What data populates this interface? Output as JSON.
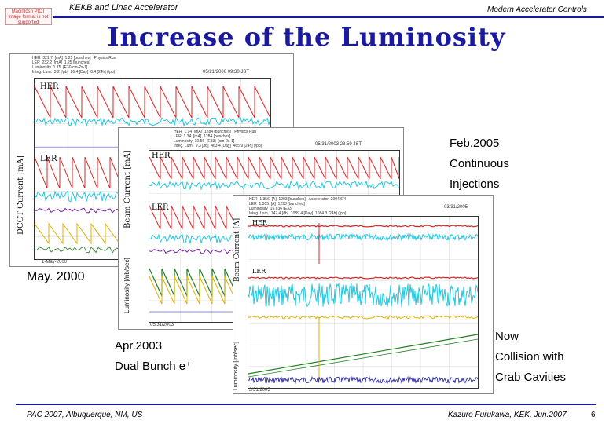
{
  "header": {
    "left": "KEKB and Linac Accelerator",
    "right": "Modern Accelerator Controls",
    "logo": "Macintosh PICT image format is not supported"
  },
  "title": "Increase of the Luminosity",
  "captions": {
    "may2000": "May. 2000",
    "feb2005": [
      "Feb.2005",
      "Continuous",
      "Injections"
    ],
    "apr2003": [
      "Apr.2003",
      "Dual Bunch e⁺"
    ],
    "now": [
      "Now",
      "Collision with",
      "Crab Cavities"
    ]
  },
  "plots": {
    "p2000": {
      "her_label": "HER",
      "ler_label": "LER",
      "ylabel": "DCCT Current [mA]",
      "info": "HER  321.7  [mA]  1.25 [bunches]   Physics Run\nLER  232.2  [mA]  1.25 [bunches]\nLuminosity  1.75  [E30 cm-2s-1]\nInteg. Lum.  3.2 [/pb]  26.4 [Day]  6.4 [24h] (/pb)",
      "date": "05/21/2000 09:30 JST",
      "time_label": "1-May-2000"
    },
    "p2003": {
      "her_label": "HER",
      "ler_label": "LER",
      "ylabel": "Beam Current [mA]",
      "ylabel2": "Luminosity [/nb/sec]",
      "info": "HER  1.14  [mA]  1284 [bunches]   Physics Run\nLER  1.34  [mA]  1284 [bunches]\nLuminosity  10.56  [E33]  [cm-2s-1]\nInteg. Lum.  9.3 [/fb]  463.4 [Day]  465.9 [24h] (/pb)",
      "date": "05/31/2003 23:59 JST",
      "time_label": "05/31/2003"
    },
    "p2005": {
      "her_label": "HER",
      "ler_label": "LER",
      "ylabel": "Beam Current [A]",
      "ylabel2": "Luminosity [/nb/sec]",
      "info": "HER  1.356  [A]  1293 [bunches]   Accelerator: 2004/6/4\nLER  1.305  [A]  1293 [bunches]\nLuminosity  15.636 [E33]\nInteg. Lum.  747.4 [/fb]  1089.4 [Day]  1084.3 [24h] (/pb)",
      "date": "03/31/2005",
      "time_label": "3/31/2005"
    }
  },
  "footer": {
    "left": "PAC 2007, Albuquerque, NM, US",
    "right": "Kazuro Furukawa, KEK, Jun.2007.",
    "page": "6"
  }
}
